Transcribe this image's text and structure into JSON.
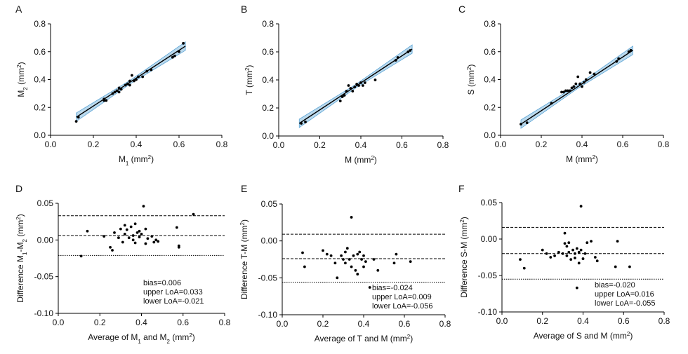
{
  "chart_data": [
    {
      "type": "scatter",
      "panel_letter": "A",
      "xlabel_parts": [
        "M",
        "1",
        " (mm",
        "2",
        ")"
      ],
      "ylabel_parts": [
        "M",
        "2",
        " (mm",
        "2",
        ")"
      ],
      "xlim": [
        0.0,
        0.8
      ],
      "ylim": [
        0.0,
        0.8
      ],
      "xticks": [
        "0.0",
        "0.2",
        "0.4",
        "0.6",
        "0.8"
      ],
      "yticks": [
        "0.0",
        "0.2",
        "0.4",
        "0.6",
        "0.8"
      ],
      "fit_line": [
        [
          0.12,
          0.13
        ],
        [
          0.63,
          0.64
        ]
      ],
      "points": [
        [
          0.12,
          0.1
        ],
        [
          0.13,
          0.13
        ],
        [
          0.25,
          0.25
        ],
        [
          0.25,
          0.26
        ],
        [
          0.26,
          0.25
        ],
        [
          0.29,
          0.3
        ],
        [
          0.3,
          0.31
        ],
        [
          0.31,
          0.32
        ],
        [
          0.32,
          0.31
        ],
        [
          0.32,
          0.34
        ],
        [
          0.33,
          0.33
        ],
        [
          0.35,
          0.36
        ],
        [
          0.36,
          0.37
        ],
        [
          0.37,
          0.36
        ],
        [
          0.37,
          0.39
        ],
        [
          0.38,
          0.43
        ],
        [
          0.39,
          0.39
        ],
        [
          0.4,
          0.4
        ],
        [
          0.41,
          0.42
        ],
        [
          0.43,
          0.42
        ],
        [
          0.45,
          0.46
        ],
        [
          0.47,
          0.47
        ],
        [
          0.57,
          0.56
        ],
        [
          0.58,
          0.57
        ],
        [
          0.6,
          0.6
        ],
        [
          0.62,
          0.66
        ]
      ]
    },
    {
      "type": "scatter",
      "panel_letter": "B",
      "xlabel_parts": [
        "M (mm",
        "2",
        ")"
      ],
      "ylabel_parts": [
        "T (mm",
        "2",
        ")"
      ],
      "xlim": [
        0.0,
        0.8
      ],
      "ylim": [
        0.0,
        0.8
      ],
      "xticks": [
        "0.0",
        "0.2",
        "0.4",
        "0.6",
        "0.8"
      ],
      "yticks": [
        "0.0",
        "0.2",
        "0.4",
        "0.6",
        "0.8"
      ],
      "fit_line": [
        [
          0.1,
          0.09
        ],
        [
          0.65,
          0.62
        ]
      ],
      "points": [
        [
          0.11,
          0.09
        ],
        [
          0.13,
          0.1
        ],
        [
          0.3,
          0.25
        ],
        [
          0.31,
          0.28
        ],
        [
          0.32,
          0.29
        ],
        [
          0.33,
          0.32
        ],
        [
          0.34,
          0.36
        ],
        [
          0.35,
          0.34
        ],
        [
          0.36,
          0.32
        ],
        [
          0.37,
          0.35
        ],
        [
          0.38,
          0.37
        ],
        [
          0.39,
          0.36
        ],
        [
          0.4,
          0.38
        ],
        [
          0.41,
          0.36
        ],
        [
          0.42,
          0.38
        ],
        [
          0.47,
          0.4
        ],
        [
          0.57,
          0.54
        ],
        [
          0.58,
          0.56
        ],
        [
          0.63,
          0.6
        ],
        [
          0.64,
          0.61
        ]
      ]
    },
    {
      "type": "scatter",
      "panel_letter": "C",
      "xlabel_parts": [
        "M (mm",
        "2",
        ")"
      ],
      "ylabel_parts": [
        "S (mm",
        "2",
        ")"
      ],
      "xlim": [
        0.0,
        0.8
      ],
      "ylim": [
        0.0,
        0.8
      ],
      "xticks": [
        "0.0",
        "0.2",
        "0.4",
        "0.6",
        "0.8"
      ],
      "yticks": [
        "0.0",
        "0.2",
        "0.4",
        "0.6",
        "0.8"
      ],
      "fit_line": [
        [
          0.1,
          0.08
        ],
        [
          0.65,
          0.61
        ]
      ],
      "points": [
        [
          0.1,
          0.08
        ],
        [
          0.13,
          0.09
        ],
        [
          0.25,
          0.23
        ],
        [
          0.3,
          0.31
        ],
        [
          0.31,
          0.31
        ],
        [
          0.32,
          0.32
        ],
        [
          0.33,
          0.32
        ],
        [
          0.34,
          0.32
        ],
        [
          0.35,
          0.34
        ],
        [
          0.36,
          0.35
        ],
        [
          0.37,
          0.37
        ],
        [
          0.38,
          0.42
        ],
        [
          0.39,
          0.37
        ],
        [
          0.4,
          0.35
        ],
        [
          0.41,
          0.38
        ],
        [
          0.42,
          0.4
        ],
        [
          0.44,
          0.45
        ],
        [
          0.46,
          0.44
        ],
        [
          0.57,
          0.53
        ],
        [
          0.58,
          0.55
        ],
        [
          0.63,
          0.6
        ],
        [
          0.64,
          0.61
        ]
      ]
    },
    {
      "type": "scatter",
      "panel_letter": "D",
      "xlabel_parts": [
        "Average of M",
        "1",
        " and M",
        "2",
        " (mm",
        "2",
        ")"
      ],
      "ylabel_parts": [
        "Difference M",
        "1",
        "-M",
        "2",
        " (mm",
        "2",
        ")"
      ],
      "xlim": [
        0.0,
        0.8
      ],
      "ylim": [
        -0.1,
        0.05
      ],
      "xticks": [
        "0.0",
        "0.2",
        "0.4",
        "0.6",
        "0.8"
      ],
      "yticks": [
        "0.05",
        "0.00",
        "-0.05",
        "-0.10"
      ],
      "bias": 0.006,
      "upper_loa": 0.033,
      "lower_loa": -0.021,
      "stats": [
        "bias=0.006",
        "upper LoA=0.033",
        "lower LoA=-0.021"
      ],
      "points": [
        [
          0.11,
          -0.022
        ],
        [
          0.14,
          0.012
        ],
        [
          0.22,
          0.005
        ],
        [
          0.25,
          -0.01
        ],
        [
          0.26,
          -0.014
        ],
        [
          0.27,
          0.01
        ],
        [
          0.29,
          0.003
        ],
        [
          0.3,
          0.015
        ],
        [
          0.31,
          -0.003
        ],
        [
          0.32,
          0.02
        ],
        [
          0.32,
          0.008
        ],
        [
          0.33,
          0.014
        ],
        [
          0.34,
          0.003
        ],
        [
          0.35,
          0.018
        ],
        [
          0.36,
          0.006
        ],
        [
          0.36,
          0.0
        ],
        [
          0.37,
          -0.004
        ],
        [
          0.37,
          0.022
        ],
        [
          0.38,
          0.01
        ],
        [
          0.39,
          0.004
        ],
        [
          0.39,
          0.012
        ],
        [
          0.4,
          0.008
        ],
        [
          0.41,
          0.046
        ],
        [
          0.42,
          0.015
        ],
        [
          0.42,
          -0.005
        ],
        [
          0.43,
          0.002
        ],
        [
          0.45,
          0.005
        ],
        [
          0.46,
          -0.003
        ],
        [
          0.47,
          0.0
        ],
        [
          0.48,
          -0.002
        ],
        [
          0.57,
          0.017
        ],
        [
          0.58,
          -0.01
        ],
        [
          0.58,
          -0.008
        ],
        [
          0.65,
          0.035
        ]
      ]
    },
    {
      "type": "scatter",
      "panel_letter": "E",
      "xlabel_parts": [
        "Average of T and M (mm",
        "2",
        ")"
      ],
      "ylabel_parts": [
        "Difference T-M (mm",
        "2",
        ")"
      ],
      "xlim": [
        0.0,
        0.8
      ],
      "ylim": [
        -0.1,
        0.05
      ],
      "xticks": [
        "0.0",
        "0.2",
        "0.4",
        "0.6",
        "0.8"
      ],
      "yticks": [
        "0.05",
        "0.00",
        "-0.05",
        "-0.10"
      ],
      "bias": -0.024,
      "upper_loa": 0.009,
      "lower_loa": -0.056,
      "stats": [
        "bias=-0.024",
        "upper LoA=0.009",
        "lower LoA=-0.056"
      ],
      "points": [
        [
          0.1,
          -0.016
        ],
        [
          0.11,
          -0.035
        ],
        [
          0.2,
          -0.013
        ],
        [
          0.22,
          -0.018
        ],
        [
          0.24,
          -0.02
        ],
        [
          0.26,
          -0.03
        ],
        [
          0.27,
          -0.05
        ],
        [
          0.29,
          -0.02
        ],
        [
          0.3,
          -0.025
        ],
        [
          0.31,
          -0.015
        ],
        [
          0.31,
          -0.03
        ],
        [
          0.32,
          -0.01
        ],
        [
          0.33,
          -0.025
        ],
        [
          0.34,
          0.032
        ],
        [
          0.34,
          -0.035
        ],
        [
          0.35,
          -0.02
        ],
        [
          0.36,
          -0.04
        ],
        [
          0.37,
          -0.018
        ],
        [
          0.37,
          -0.045
        ],
        [
          0.38,
          -0.015
        ],
        [
          0.39,
          -0.025
        ],
        [
          0.4,
          -0.035
        ],
        [
          0.4,
          -0.02
        ],
        [
          0.41,
          -0.028
        ],
        [
          0.43,
          -0.063
        ],
        [
          0.45,
          -0.025
        ],
        [
          0.47,
          -0.04
        ],
        [
          0.55,
          -0.03
        ],
        [
          0.56,
          -0.018
        ],
        [
          0.63,
          -0.028
        ]
      ]
    },
    {
      "type": "scatter",
      "panel_letter": "F",
      "xlabel_parts": [
        "Average of S and M (mm",
        "2",
        ")"
      ],
      "ylabel_parts": [
        "Difference S-M (mm",
        "2",
        ")"
      ],
      "xlim": [
        0.0,
        0.8
      ],
      "ylim": [
        -0.1,
        0.05
      ],
      "xticks": [
        "0.0",
        "0.2",
        "0.4",
        "0.6",
        "0.8"
      ],
      "yticks": [
        "0.05",
        "0.00",
        "-0.05",
        "-0.10"
      ],
      "bias": -0.02,
      "upper_loa": 0.016,
      "lower_loa": -0.055,
      "stats": [
        "bias=-0.020",
        "upper LoA=0.016",
        "lower LoA=-0.055"
      ],
      "points": [
        [
          0.09,
          -0.028
        ],
        [
          0.11,
          -0.04
        ],
        [
          0.2,
          -0.015
        ],
        [
          0.22,
          -0.02
        ],
        [
          0.24,
          -0.025
        ],
        [
          0.26,
          -0.023
        ],
        [
          0.28,
          -0.018
        ],
        [
          0.3,
          -0.02
        ],
        [
          0.31,
          0.008
        ],
        [
          0.31,
          -0.006
        ],
        [
          0.32,
          -0.01
        ],
        [
          0.32,
          -0.023
        ],
        [
          0.33,
          -0.005
        ],
        [
          0.33,
          -0.018
        ],
        [
          0.34,
          -0.028
        ],
        [
          0.35,
          -0.015
        ],
        [
          0.36,
          -0.02
        ],
        [
          0.36,
          -0.026
        ],
        [
          0.37,
          -0.013
        ],
        [
          0.37,
          -0.067
        ],
        [
          0.38,
          -0.018
        ],
        [
          0.38,
          -0.033
        ],
        [
          0.39,
          0.045
        ],
        [
          0.39,
          -0.015
        ],
        [
          0.4,
          -0.027
        ],
        [
          0.41,
          -0.02
        ],
        [
          0.42,
          -0.005
        ],
        [
          0.44,
          -0.003
        ],
        [
          0.46,
          -0.025
        ],
        [
          0.47,
          -0.03
        ],
        [
          0.56,
          -0.038
        ],
        [
          0.57,
          -0.003
        ],
        [
          0.63,
          -0.038
        ]
      ]
    }
  ]
}
